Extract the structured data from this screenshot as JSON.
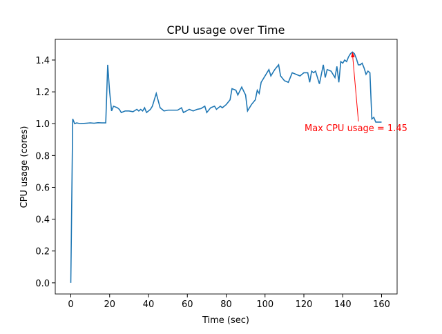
{
  "chart_data": {
    "type": "line",
    "title": "CPU usage over Time",
    "x_label": "Time (sec)",
    "y_label": "CPU usage (cores)",
    "x": [
      0,
      1,
      2,
      3,
      5,
      8,
      10,
      12,
      14,
      16,
      18,
      19,
      20,
      21,
      22,
      24,
      25,
      26,
      28,
      30,
      32,
      34,
      35,
      36,
      37,
      38,
      39,
      41,
      42,
      44,
      46,
      48,
      50,
      55,
      57,
      58,
      61,
      63,
      65,
      67,
      69,
      70,
      72,
      74,
      75,
      77,
      78,
      80,
      82,
      83,
      85,
      86,
      88,
      90,
      91,
      93,
      95,
      96,
      97,
      98,
      100,
      102,
      103,
      105,
      107,
      108,
      110,
      112,
      114,
      116,
      118,
      120,
      122,
      123,
      124,
      125,
      126,
      128,
      130,
      131,
      132,
      134,
      136,
      137,
      138,
      139,
      140,
      141,
      142,
      143,
      144,
      145,
      146,
      147,
      148,
      149,
      150,
      151,
      152,
      153,
      154,
      155,
      156,
      157,
      160
    ],
    "series": [
      {
        "name": "CPU usage",
        "color": "#1f77b4",
        "values": [
          0.0,
          1.03,
          1.0,
          1.005,
          1.0,
          1.003,
          1.005,
          1.003,
          1.006,
          1.005,
          1.005,
          1.37,
          1.2,
          1.08,
          1.11,
          1.1,
          1.09,
          1.07,
          1.08,
          1.08,
          1.075,
          1.09,
          1.08,
          1.09,
          1.08,
          1.1,
          1.07,
          1.09,
          1.11,
          1.19,
          1.1,
          1.08,
          1.085,
          1.085,
          1.1,
          1.07,
          1.09,
          1.08,
          1.09,
          1.095,
          1.11,
          1.07,
          1.1,
          1.11,
          1.09,
          1.11,
          1.1,
          1.12,
          1.15,
          1.22,
          1.21,
          1.18,
          1.23,
          1.18,
          1.08,
          1.12,
          1.15,
          1.21,
          1.19,
          1.26,
          1.3,
          1.34,
          1.3,
          1.34,
          1.37,
          1.3,
          1.27,
          1.26,
          1.32,
          1.31,
          1.3,
          1.32,
          1.32,
          1.26,
          1.33,
          1.32,
          1.33,
          1.25,
          1.37,
          1.29,
          1.34,
          1.33,
          1.29,
          1.36,
          1.26,
          1.39,
          1.38,
          1.4,
          1.39,
          1.42,
          1.44,
          1.45,
          1.44,
          1.41,
          1.37,
          1.37,
          1.38,
          1.35,
          1.31,
          1.33,
          1.32,
          1.03,
          1.04,
          1.01,
          1.01
        ]
      }
    ],
    "annotation": {
      "text": "Max CPU usage = 1.45",
      "color": "red"
    },
    "xlim": [
      -8,
      168
    ],
    "ylim": [
      -0.07,
      1.53
    ],
    "xticks": [
      0,
      20,
      40,
      60,
      80,
      100,
      120,
      140,
      160
    ],
    "yticks": [
      {
        "value": 0,
        "label": "0.0"
      },
      0.2,
      0.4,
      0.6,
      0.8,
      {
        "value": 1,
        "label": "1.0"
      },
      1.2,
      1.4
    ]
  }
}
